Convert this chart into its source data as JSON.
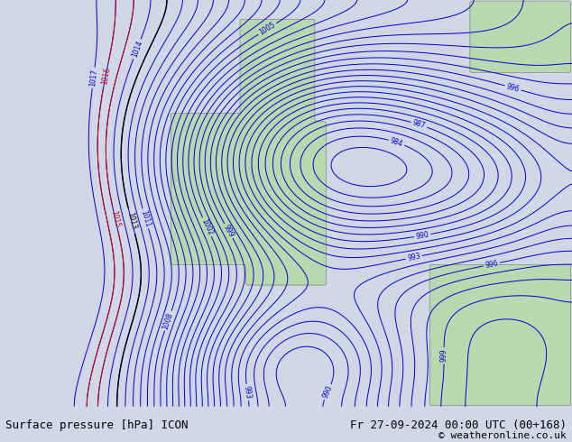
{
  "title_left": "Surface pressure [hPa] ICON",
  "title_right": "Fr 27-09-2024 00:00 UTC (00+168)",
  "copyright": "© weatheronline.co.uk",
  "bg_color": "#d0d8e8",
  "land_color": "#b8d8b0",
  "coast_color": "#888888",
  "contour_color_blue": "#0000cc",
  "contour_color_black": "#000000",
  "contour_color_red": "#cc0000",
  "label_fontsize": 7,
  "title_fontsize": 9,
  "figsize": [
    6.34,
    4.9
  ],
  "dpi": 100
}
